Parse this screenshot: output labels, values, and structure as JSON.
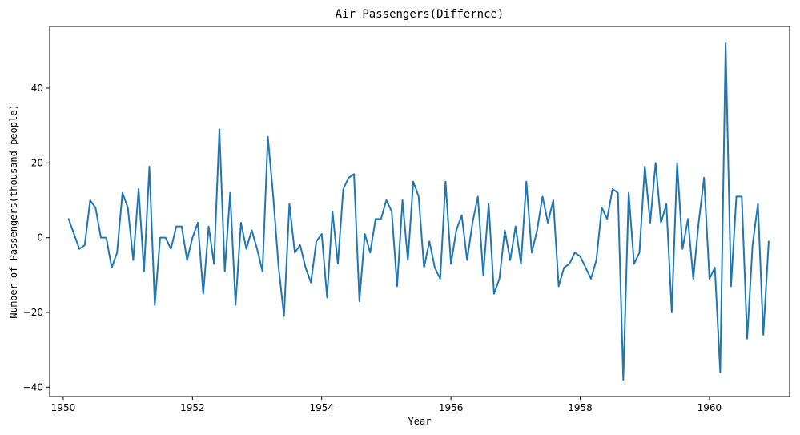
{
  "chart_data": {
    "type": "line",
    "title": "Air Passengers(Differnce)",
    "xlabel": "Year",
    "ylabel": "Number of Passengers(thousand people)",
    "xlim": [
      1949.79,
      1961.24
    ],
    "ylim": [
      -42.5,
      56.5
    ],
    "x_ticks": [
      1950,
      1952,
      1954,
      1956,
      1958,
      1960
    ],
    "x_tick_labels": [
      "1950",
      "1952",
      "1954",
      "1956",
      "1958",
      "1960"
    ],
    "y_ticks": [
      -40,
      -20,
      0,
      20,
      40
    ],
    "y_tick_labels": [
      "−40",
      "−20",
      "0",
      "20",
      "40"
    ],
    "grid": false,
    "series_color": "#1f77b4",
    "series": [
      {
        "x_start": 1950.0833,
        "x_step": 0.0833333,
        "values": [
          5,
          1,
          -3,
          -2,
          10,
          8,
          0,
          0,
          -8,
          -4,
          12,
          8,
          -6,
          13,
          -9,
          19,
          -18,
          0,
          0,
          -3,
          3,
          3,
          -6,
          0,
          4,
          -15,
          3,
          -7,
          29,
          -9,
          12,
          -18,
          4,
          -3,
          2,
          -3,
          -9,
          27,
          11,
          -8,
          -21,
          9,
          -4,
          -2,
          -8,
          -12,
          -1,
          1,
          -16,
          7,
          -7,
          13,
          16,
          17,
          -17,
          1,
          -4,
          5,
          5,
          10,
          7,
          -13,
          10,
          -6,
          15,
          11,
          -8,
          -1,
          -8,
          -11,
          15,
          -7,
          2,
          6,
          -6,
          4,
          11,
          -10,
          9,
          -15,
          -11,
          2,
          -6,
          3,
          -7,
          15,
          -4,
          2,
          11,
          4,
          10,
          -13,
          -8,
          -7,
          -4,
          -5,
          -8,
          -11,
          -6,
          8,
          5,
          13,
          12,
          -38,
          12,
          -7,
          -4,
          19,
          4,
          20,
          4,
          9,
          -20,
          20,
          -3,
          5,
          -11,
          4,
          16,
          -11,
          -8,
          -36,
          52,
          -13,
          11,
          11,
          -27,
          -2,
          9,
          -26,
          -1
        ]
      }
    ]
  }
}
